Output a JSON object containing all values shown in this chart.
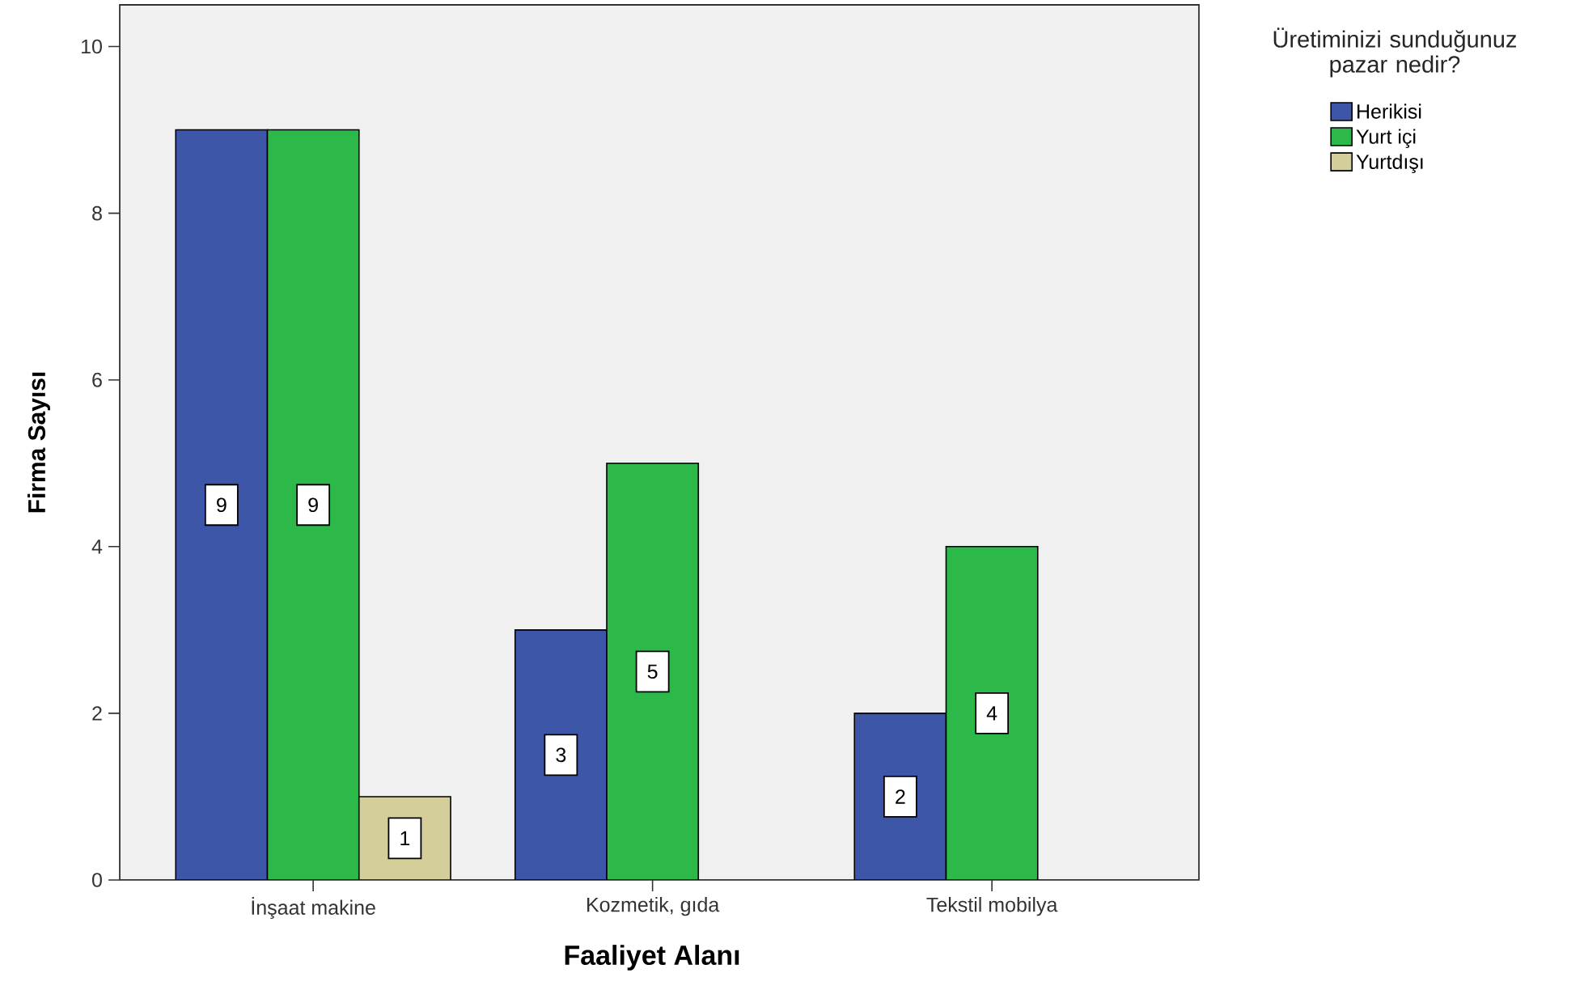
{
  "chart_data": {
    "type": "bar",
    "xlabel": "Faaliyet Alanı",
    "ylabel": "Firma Sayısı",
    "legend_title": "Üretiminizi sunduğunuz pazar nedir?",
    "categories": [
      "İnşaat makine",
      "Kozmetik, gıda",
      "Tekstil mobilya"
    ],
    "series": [
      {
        "name": "Herikisi",
        "color": "#3d56a8",
        "values": [
          9,
          3,
          2
        ]
      },
      {
        "name": "Yurt içi",
        "color": "#2db84a",
        "values": [
          9,
          5,
          4
        ]
      },
      {
        "name": "Yurtdışı",
        "color": "#d4cf9a",
        "values": [
          1,
          null,
          null
        ]
      }
    ],
    "ylim": [
      0,
      10.5
    ],
    "yticks": [
      0,
      2,
      4,
      6,
      8,
      10
    ],
    "data_labels": true,
    "legend": "top right"
  }
}
